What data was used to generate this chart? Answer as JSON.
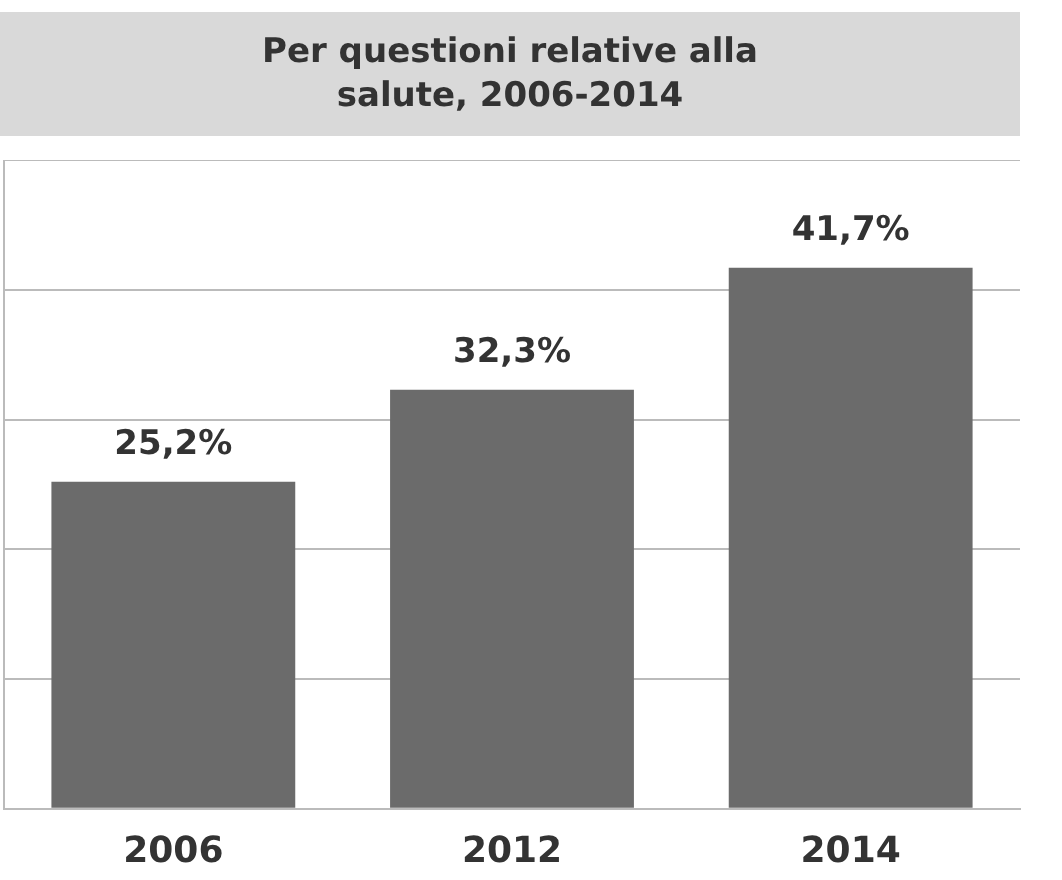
{
  "chart_data": {
    "type": "bar",
    "title": "Per questioni relative alla salute, 2006-2014",
    "categories": [
      "2006",
      "2012",
      "2014"
    ],
    "values": [
      25.2,
      32.3,
      41.7
    ],
    "value_labels": [
      "25,2%",
      "32,3%",
      "41,7%"
    ],
    "color": "#6b6b6b",
    "ylim": [
      0,
      50
    ],
    "yticks": [
      {
        "value": 0,
        "label": null
      },
      {
        "value": 10,
        "label": null
      },
      {
        "value": 20,
        "label": null
      },
      {
        "value": 30,
        "label": null
      },
      {
        "value": 40,
        "label": null
      },
      {
        "value": 50,
        "label": null
      }
    ],
    "tick_labels": "x",
    "grid": "y",
    "legend": false
  }
}
